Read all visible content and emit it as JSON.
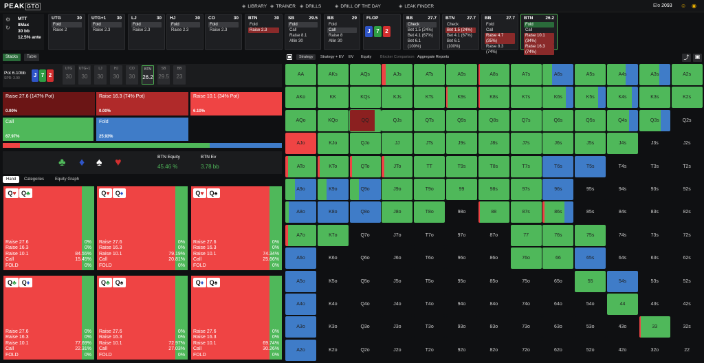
{
  "app": {
    "logo_main": "PEAK",
    "logo_sub": "GTO",
    "elo_label": "Elo",
    "elo_value": "2093"
  },
  "nav": [
    {
      "label": "LIBRARY",
      "icon": "library-icon"
    },
    {
      "label": "TRAINER",
      "icon": "trainer-icon"
    },
    {
      "label": "DRILLS",
      "icon": "drills-icon"
    },
    {
      "label": "DRILL OF THE DAY",
      "icon": "calendar-icon"
    },
    {
      "label": "LEAK FINDER",
      "icon": "leak-icon"
    }
  ],
  "config": {
    "format": "MTT",
    "max": "8Max",
    "stack": "30 bb",
    "ante": "12.5% ante"
  },
  "positions": [
    {
      "name": "UTG",
      "stack": "30",
      "items": [
        "Fold",
        "Raise 2"
      ],
      "sel": 0
    },
    {
      "name": "UTG+1",
      "stack": "30",
      "items": [
        "Fold",
        "Raise 2.3"
      ],
      "sel": 0
    },
    {
      "name": "LJ",
      "stack": "30",
      "items": [
        "Fold",
        "Raise 2.3"
      ],
      "sel": 0
    },
    {
      "name": "HJ",
      "stack": "30",
      "items": [
        "Fold",
        "Raise 2.3"
      ],
      "sel": 0
    },
    {
      "name": "CO",
      "stack": "30",
      "items": [
        "Fold",
        "Raise 2.3"
      ],
      "sel": 0
    },
    {
      "name": "BTN",
      "stack": "30",
      "items": [
        "Fold",
        "Raise 2.3"
      ],
      "sel": 1
    },
    {
      "name": "SB",
      "stack": "29.5",
      "items": [
        "Fold",
        "Call",
        "Raise 8.1",
        "Allin 30"
      ],
      "sel": 0
    },
    {
      "name": "BB",
      "stack": "29",
      "items": [
        "Fold",
        "Call",
        "Raise 8",
        "Allin 30"
      ],
      "sel": 1
    }
  ],
  "flop": {
    "label": "FLOP",
    "cards": [
      {
        "r": "J",
        "c": "#2f55c8"
      },
      {
        "r": "7",
        "c": "#2f9e44"
      },
      {
        "r": "2",
        "c": "#d32f2f"
      }
    ]
  },
  "postflop": [
    {
      "name": "BB",
      "stack": "27.7",
      "items": [
        "Check",
        "Bet 1.5 (24%)",
        "Bet 4.1 (67%)",
        "Bet 6.1 (100%)"
      ],
      "sel": 0
    },
    {
      "name": "BTN",
      "stack": "27.7",
      "items": [
        "Check",
        "Bet 1.5 (24%)",
        "Bet 4.1 (67%)",
        "Bet 6.1 (100%)"
      ],
      "sel": 1
    },
    {
      "name": "BB",
      "stack": "27.7",
      "items": [
        "Fold",
        "Call",
        "Raise 4.7 (35%)",
        "Raise 8.3 (74%)"
      ],
      "sel": 2
    },
    {
      "name": "BTN",
      "stack": "26.2",
      "items": [
        "Fold",
        "Call",
        "Raise 10.1 (34%)",
        "Raise 16.3 (74%)"
      ],
      "sel": 0,
      "active": true
    }
  ],
  "left_tabs": {
    "stacks": "Stacks",
    "table": "Table"
  },
  "pot": {
    "label": "Pot",
    "value": "6.10bb",
    "spr": "SPR: 3.90"
  },
  "seats": [
    {
      "name": "UTG",
      "v": "30"
    },
    {
      "name": "UTG+1",
      "v": "30"
    },
    {
      "name": "LJ",
      "v": "30"
    },
    {
      "name": "HJ",
      "v": "30"
    },
    {
      "name": "CO",
      "v": "30"
    },
    {
      "name": "BTN",
      "v": "26.2"
    },
    {
      "name": "SB",
      "v": "29.5"
    },
    {
      "name": "BB",
      "v": "23"
    }
  ],
  "actions": [
    {
      "label": "Raise 27.6 (147% Pot)",
      "pct": "0.00%",
      "color": "#6b1515"
    },
    {
      "label": "Raise 16.3 (74% Pot)",
      "pct": "0.00%",
      "color": "#b02a2a"
    },
    {
      "label": "Raise 10.1 (34% Pot)",
      "pct": "6.10%",
      "color": "#ef4444"
    },
    {
      "label": "Call",
      "pct": "67.97%",
      "color": "#4fb85a"
    },
    {
      "label": "Fold",
      "pct": "25.93%",
      "color": "#3f7cc8"
    }
  ],
  "equity": {
    "eq_label": "BTN Equity",
    "eq_value": "45.46 %",
    "ev_label": "BTN Ev",
    "ev_value": "3.78 bb"
  },
  "hand_tabs": [
    "Hand",
    "Categories",
    "Equity Graph"
  ],
  "hands": [
    {
      "c1": "Q",
      "s1": "♥",
      "c2": "Q",
      "s2": "♣",
      "k1": "#d32f2f",
      "k2": "#2f9e44",
      "vals": [
        "0%",
        "0%",
        "84.55%",
        "15.45%",
        "0%"
      ]
    },
    {
      "c1": "Q",
      "s1": "♥",
      "c2": "Q",
      "s2": "♦",
      "k1": "#d32f2f",
      "k2": "#2f55c8",
      "vals": [
        "0%",
        "0%",
        "79.19%",
        "20.81%",
        "0%"
      ]
    },
    {
      "c1": "Q",
      "s1": "♥",
      "c2": "Q",
      "s2": "♠",
      "k1": "#d32f2f",
      "k2": "#111111",
      "vals": [
        "0%",
        "0%",
        "74.34%",
        "25.66%",
        "0%"
      ]
    },
    {
      "c1": "Q",
      "s1": "♣",
      "c2": "Q",
      "s2": "♦",
      "k1": "#2f9e44",
      "k2": "#2f55c8",
      "vals": [
        "0%",
        "0%",
        "77.69%",
        "22.31%",
        "0%"
      ]
    },
    {
      "c1": "Q",
      "s1": "♣",
      "c2": "Q",
      "s2": "♠",
      "k1": "#2f9e44",
      "k2": "#111111",
      "vals": [
        "0%",
        "0%",
        "72.97%",
        "27.03%",
        "0%"
      ]
    },
    {
      "c1": "Q",
      "s1": "♦",
      "c2": "Q",
      "s2": "♠",
      "k1": "#2f55c8",
      "k2": "#111111",
      "vals": [
        "0%",
        "0%",
        "69.74%",
        "30.26%",
        "0%"
      ]
    }
  ],
  "hand_row_labels": [
    "Raise 27.6",
    "Raise 16.3",
    "Raise 10.1",
    "Call",
    "FOLD"
  ],
  "range_tabs": [
    "Strategy",
    "Strategy + EV",
    "EV",
    "Equity",
    "Blocker Comparison",
    "Aggregate Reports"
  ],
  "grid_cells": [
    [
      "AA",
      "AKs",
      "AQs",
      "AJs",
      "ATs",
      "A9s",
      "A8s",
      "A7s",
      "A6s",
      "A5s",
      "A4s",
      "A3s",
      "A2s"
    ],
    [
      "AKo",
      "KK",
      "KQs",
      "KJs",
      "KTs",
      "K9s",
      "K8s",
      "K7s",
      "K6s",
      "K5s",
      "K4s",
      "K3s",
      "K2s"
    ],
    [
      "AQo",
      "KQo",
      "QQ",
      "QJs",
      "QTs",
      "Q9s",
      "Q8s",
      "Q7s",
      "Q6s",
      "Q5s",
      "Q4s",
      "Q3s",
      "Q2s"
    ],
    [
      "AJo",
      "KJo",
      "QJo",
      "JJ",
      "JTs",
      "J9s",
      "J8s",
      "J7s",
      "J6s",
      "J5s",
      "J4s",
      "J3s",
      "J2s"
    ],
    [
      "ATo",
      "KTo",
      "QTo",
      "JTo",
      "TT",
      "T9s",
      "T8s",
      "T7s",
      "T6s",
      "T5s",
      "T4s",
      "T3s",
      "T2s"
    ],
    [
      "A9o",
      "K9o",
      "Q9o",
      "J9o",
      "T9o",
      "99",
      "98s",
      "97s",
      "96s",
      "95s",
      "94s",
      "93s",
      "92s"
    ],
    [
      "A8o",
      "K8o",
      "Q8o",
      "J8o",
      "T8o",
      "98o",
      "88",
      "87s",
      "86s",
      "85s",
      "84s",
      "83s",
      "82s"
    ],
    [
      "A7o",
      "K7o",
      "Q7o",
      "J7o",
      "T7o",
      "97o",
      "87o",
      "77",
      "76s",
      "75s",
      "74s",
      "73s",
      "72s"
    ],
    [
      "A6o",
      "K6o",
      "Q6o",
      "J6o",
      "T6o",
      "96o",
      "86o",
      "76o",
      "66",
      "65s",
      "64s",
      "63s",
      "62s"
    ],
    [
      "A5o",
      "K5o",
      "Q5o",
      "J5o",
      "T5o",
      "95o",
      "85o",
      "75o",
      "65o",
      "55",
      "54s",
      "53s",
      "52s"
    ],
    [
      "A4o",
      "K4o",
      "Q4o",
      "J4o",
      "T4o",
      "94o",
      "84o",
      "74o",
      "64o",
      "54o",
      "44",
      "43s",
      "42s"
    ],
    [
      "A3o",
      "K3o",
      "Q3o",
      "J3o",
      "T3o",
      "93o",
      "83o",
      "73o",
      "63o",
      "53o",
      "43o",
      "33",
      "32s"
    ],
    [
      "A2o",
      "K2o",
      "Q2o",
      "J2o",
      "T2o",
      "92o",
      "82o",
      "72o",
      "62o",
      "52o",
      "42o",
      "32o",
      "22"
    ]
  ],
  "grid_colors": {
    "call": "#4fb85a",
    "fold": "#3f7cc8",
    "raise": "#ef4444",
    "raise_big": "#8b2020",
    "empty": "#0f1012"
  }
}
